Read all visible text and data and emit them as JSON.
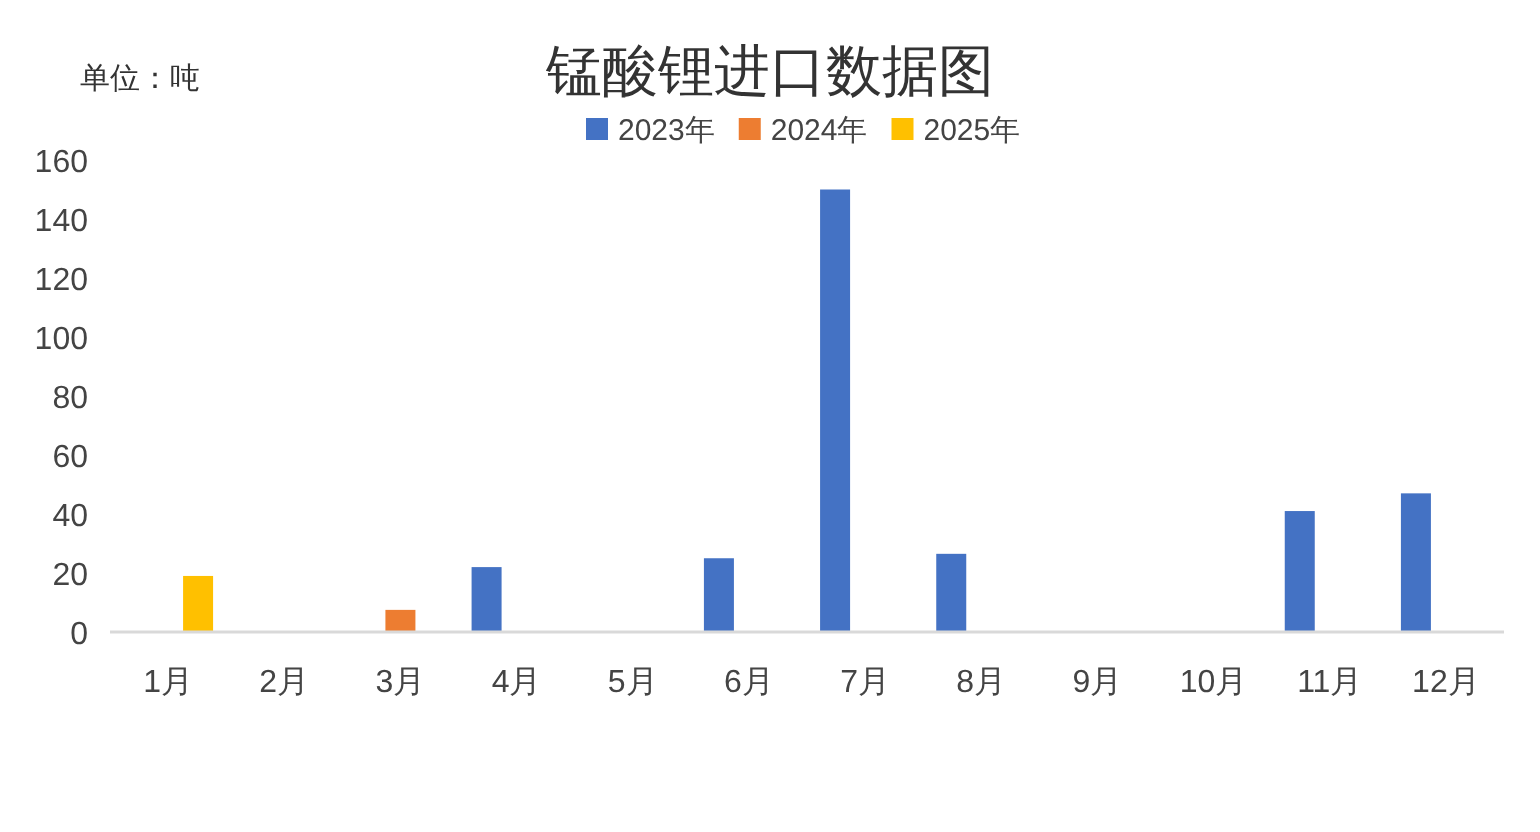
{
  "chart_data": {
    "type": "bar",
    "title": "锰酸锂进口数据图",
    "annotations": [
      "单位：吨"
    ],
    "categories": [
      "1月",
      "2月",
      "3月",
      "4月",
      "5月",
      "6月",
      "7月",
      "8月",
      "9月",
      "10月",
      "11月",
      "12月"
    ],
    "series": [
      {
        "name": "2023年",
        "color": "#4472c4",
        "values": [
          null,
          null,
          null,
          22,
          null,
          25,
          150,
          26.5,
          null,
          null,
          41,
          47
        ]
      },
      {
        "name": "2024年",
        "color": "#ed7d31",
        "values": [
          null,
          null,
          7.5,
          null,
          null,
          null,
          null,
          null,
          null,
          null,
          null,
          null
        ]
      },
      {
        "name": "2025年",
        "color": "#ffc000",
        "values": [
          19,
          null,
          null,
          null,
          null,
          null,
          null,
          null,
          null,
          null,
          null,
          null
        ]
      }
    ],
    "ylim": [
      0,
      160
    ],
    "yticks": [
      0,
      20,
      40,
      60,
      80,
      100,
      120,
      140,
      160
    ],
    "grid": false,
    "legend": "top"
  }
}
